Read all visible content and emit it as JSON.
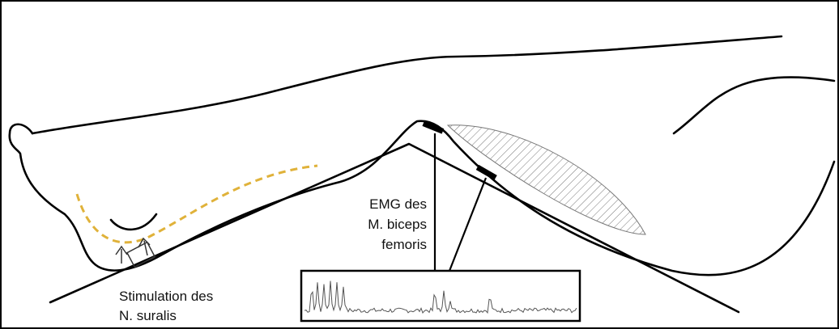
{
  "labels": {
    "stimulation": [
      "Stimulation des",
      "N. suralis"
    ],
    "emg": [
      "EMG des",
      "M. biceps",
      "femoris"
    ]
  }
}
